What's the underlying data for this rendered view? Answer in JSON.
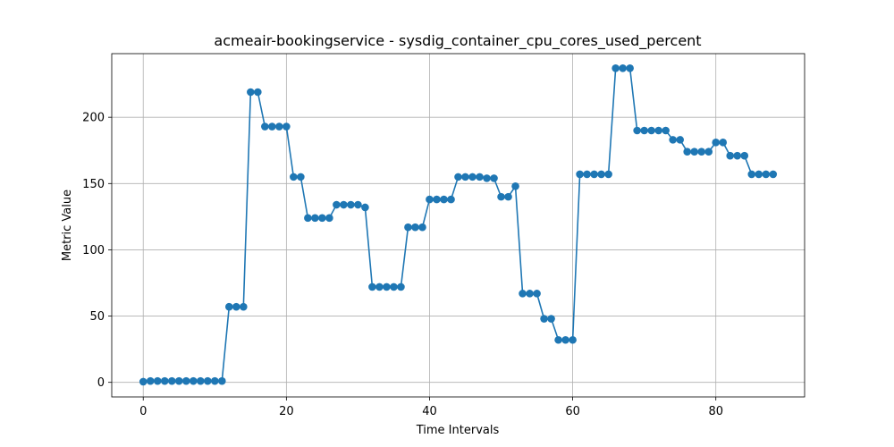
{
  "chart_data": {
    "type": "line",
    "title": "acmeair-bookingservice - sysdig_container_cpu_cores_used_percent",
    "xlabel": "Time Intervals",
    "ylabel": "Metric Value",
    "xlim": [
      -4.4,
      92.4
    ],
    "ylim": [
      -11,
      248
    ],
    "x_ticks": [
      0,
      20,
      40,
      60,
      80
    ],
    "y_ticks": [
      0,
      50,
      100,
      150,
      200
    ],
    "grid": true,
    "color": "#1f77b4",
    "series": [
      {
        "marker": "circle",
        "x": [
          0,
          1,
          2,
          3,
          4,
          5,
          6,
          7,
          8,
          9,
          10,
          11,
          12,
          13,
          14,
          15,
          16,
          17,
          18,
          19,
          20,
          21,
          22,
          23,
          24,
          25,
          26,
          27,
          28,
          29,
          30,
          31,
          32,
          33,
          34,
          35,
          36,
          37,
          38,
          39,
          40,
          41,
          42,
          43,
          44,
          45,
          46,
          47,
          48,
          49,
          50,
          51,
          52,
          53,
          54,
          55,
          56,
          57,
          58,
          59,
          60,
          61,
          62,
          63,
          64,
          65,
          66,
          67,
          68,
          69,
          70,
          71,
          72,
          73,
          74,
          75,
          76,
          77,
          78,
          79,
          80,
          81,
          82,
          83,
          84,
          85,
          86,
          87,
          88
        ],
        "y": [
          0.5,
          1,
          1,
          1,
          1,
          1,
          1,
          1,
          1,
          1,
          1,
          1,
          57,
          57,
          57,
          219,
          219,
          193,
          193,
          193,
          193,
          155,
          155,
          124,
          124,
          124,
          124,
          134,
          134,
          134,
          134,
          132,
          72,
          72,
          72,
          72,
          72,
          117,
          117,
          117,
          138,
          138,
          138,
          138,
          155,
          155,
          155,
          155,
          154,
          154,
          140,
          140,
          148,
          67,
          67,
          67,
          48,
          48,
          32,
          32,
          32,
          157,
          157,
          157,
          157,
          157,
          237,
          237,
          237,
          190,
          190,
          190,
          190,
          190,
          183,
          183,
          174,
          174,
          174,
          174,
          181,
          181,
          171,
          171,
          171,
          157,
          157,
          157,
          157
        ]
      }
    ]
  }
}
